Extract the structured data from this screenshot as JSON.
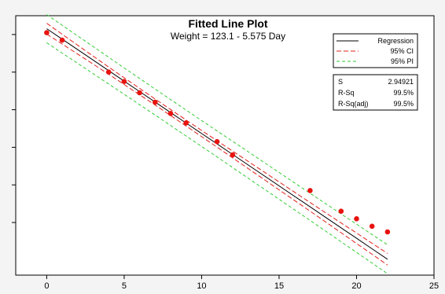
{
  "chart_data": {
    "type": "scatter",
    "title": "Fitted Line Plot",
    "subtitle": "Weight =  123.1 - 5.575 Day",
    "xlabel": "",
    "ylabel": "",
    "xlim": [
      -2,
      25
    ],
    "ylim": [
      -8,
      130
    ],
    "x_ticks": [
      0,
      5,
      10,
      15,
      20,
      25
    ],
    "grid": false,
    "legend_position": "top-right",
    "fit": {
      "intercept": 123.1,
      "slope": -5.575
    },
    "points": {
      "x": [
        0,
        1,
        4,
        5,
        6,
        7,
        8,
        9,
        11,
        12,
        17,
        19,
        20,
        21,
        22
      ],
      "y": [
        121,
        117,
        100,
        95,
        89,
        84,
        78,
        73,
        63,
        56,
        37,
        26,
        22,
        18,
        15
      ]
    },
    "ci_halfwidth": [
      2.9,
      2.6,
      1.9,
      1.8,
      1.7,
      1.6,
      1.6,
      1.6,
      1.7,
      1.8,
      2.3,
      2.6,
      2.8,
      2.9,
      3.1
    ],
    "pi_halfwidth": [
      7.5,
      7.4,
      7.1,
      7.0,
      7.0,
      6.9,
      6.9,
      6.9,
      6.9,
      7.0,
      7.2,
      7.4,
      7.5,
      7.6,
      7.7
    ],
    "legend": [
      {
        "label": "Regression",
        "color": "#000000",
        "style": "solid"
      },
      {
        "label": "95% CI",
        "color": "#e0201b",
        "style": "dashed"
      },
      {
        "label": "95% PI",
        "color": "#33cc33",
        "style": "dashed"
      }
    ],
    "stats": [
      {
        "label": "S",
        "value": "2.94921"
      },
      {
        "label": "R-Sq",
        "value": "99.5%"
      },
      {
        "label": "R-Sq(adj)",
        "value": "99.5%"
      }
    ],
    "colors": {
      "points": "#e8130f",
      "regression": "#000000",
      "ci": "#e0201b",
      "pi": "#33cc33"
    }
  }
}
